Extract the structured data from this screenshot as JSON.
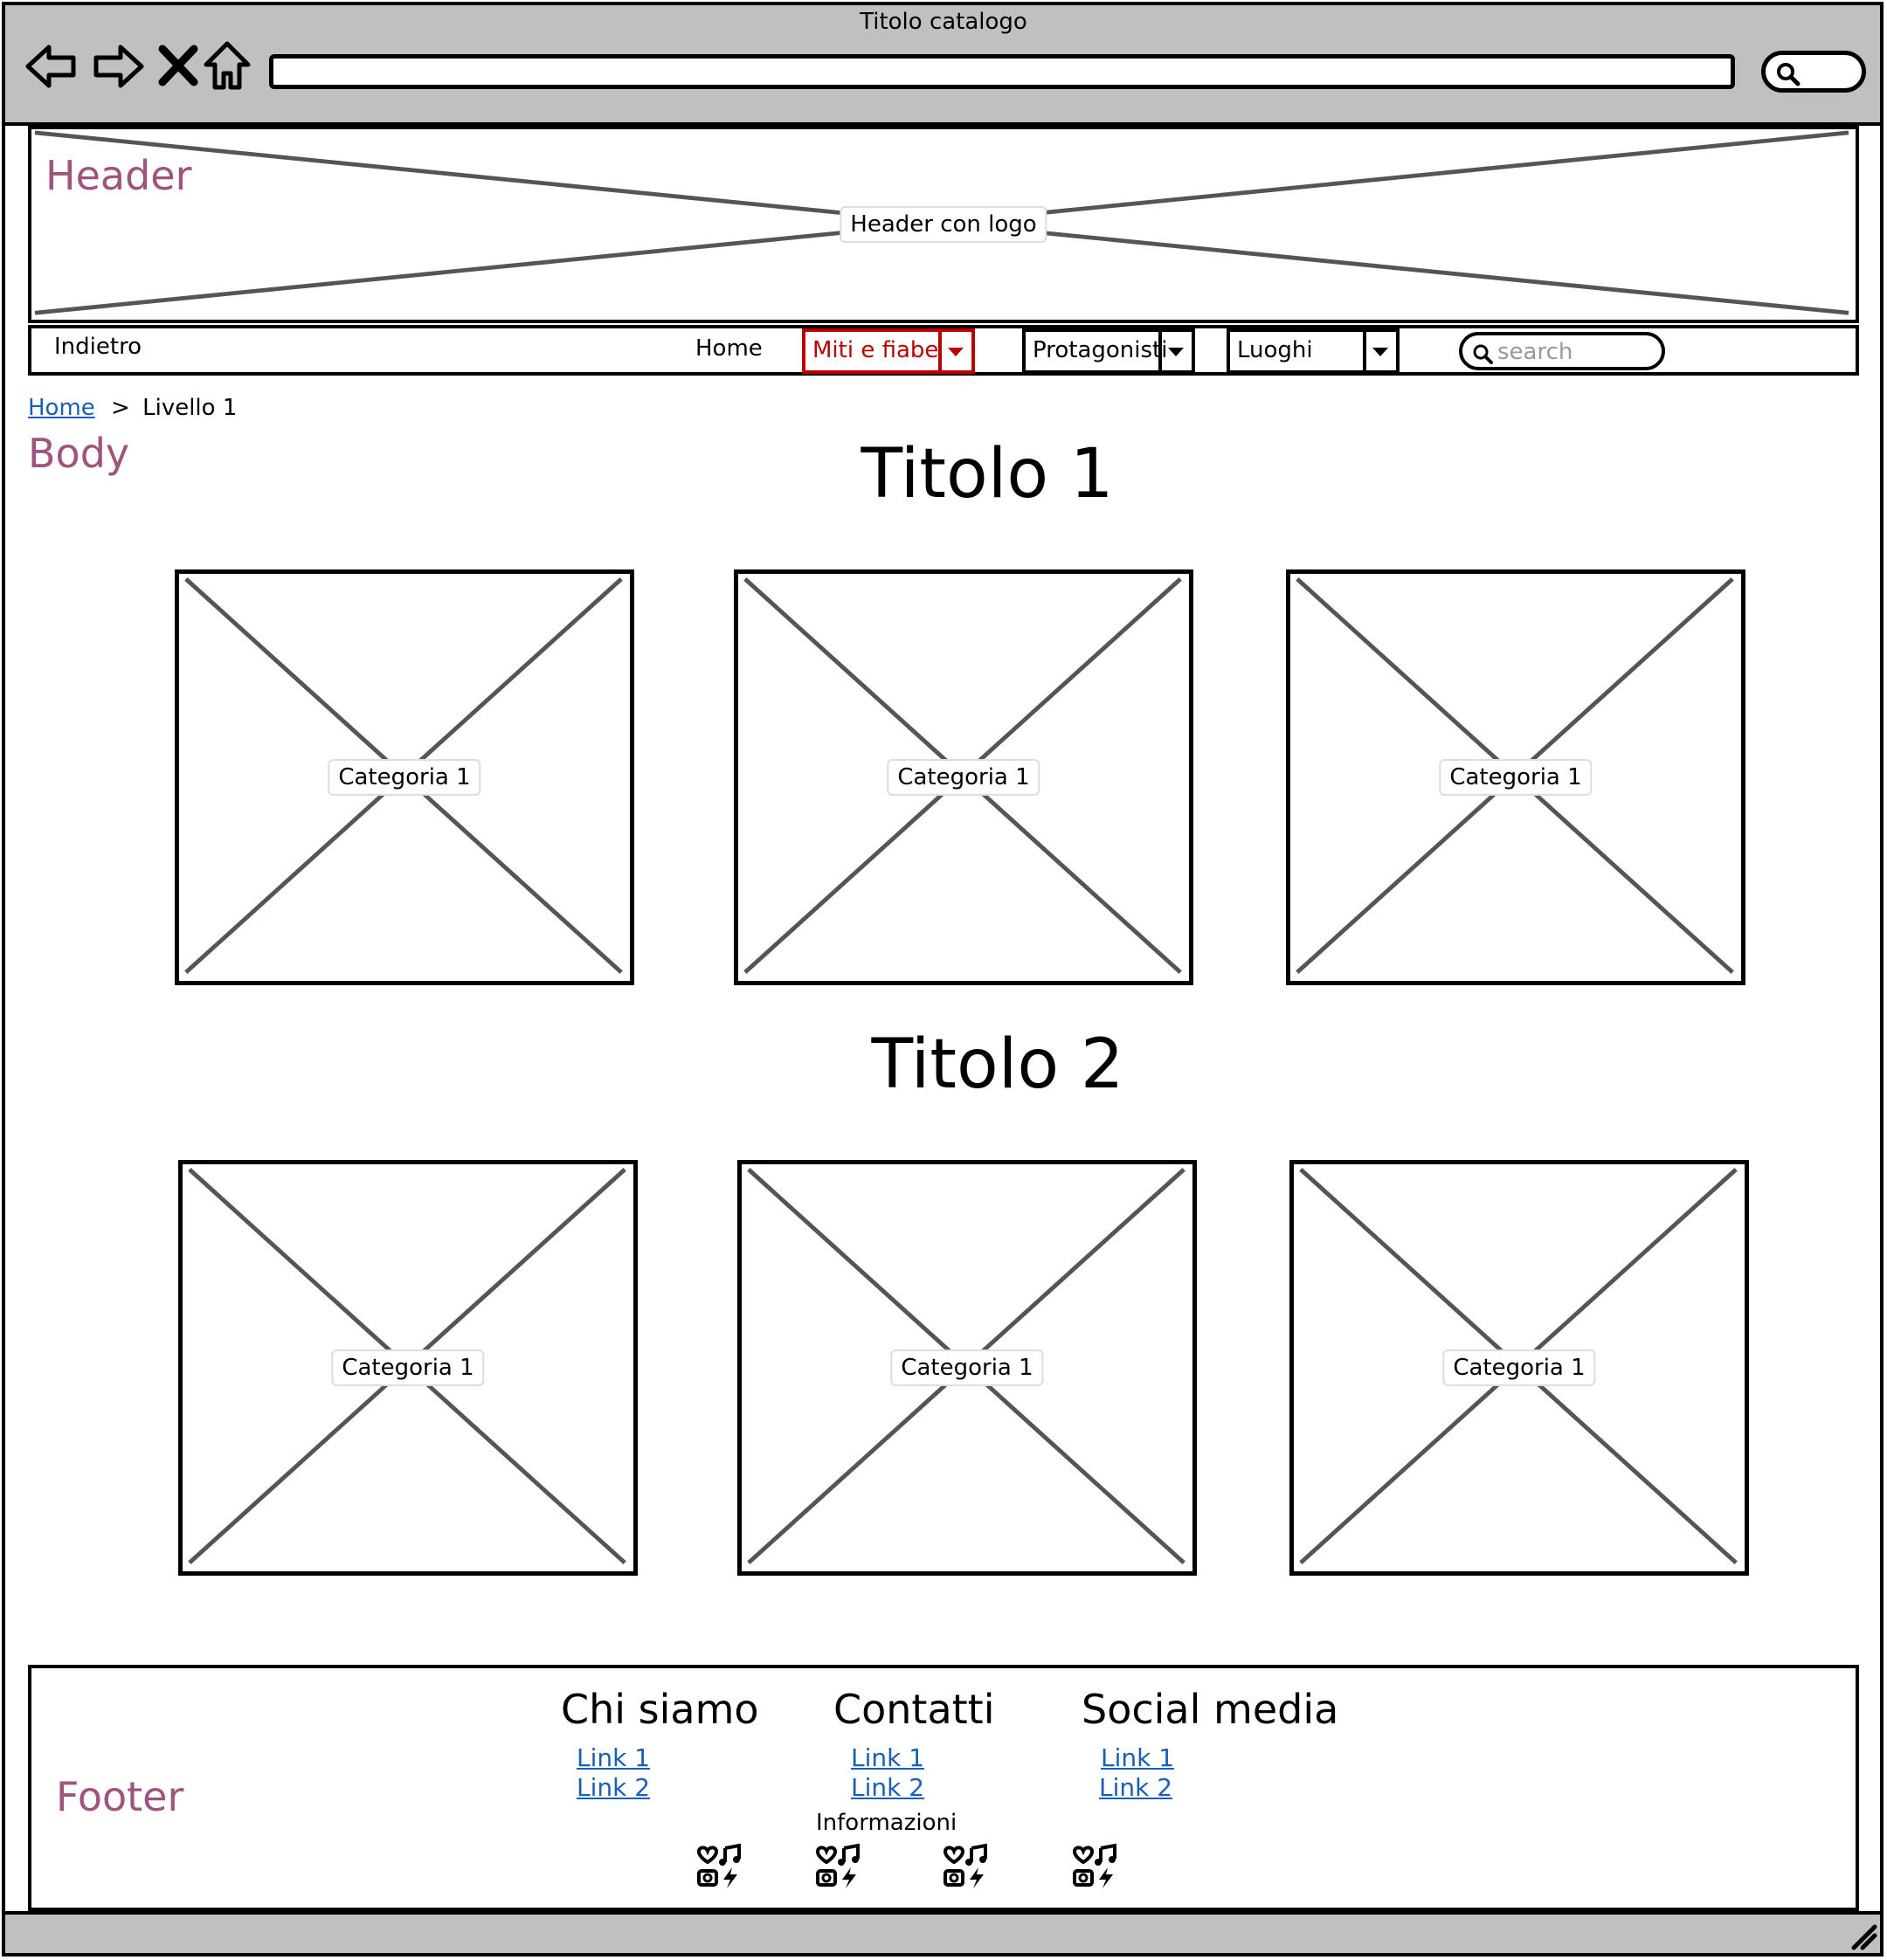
{
  "browser": {
    "title": "Titolo catalogo",
    "nav_icons": [
      "back-arrow-icon",
      "forward-arrow-icon",
      "close-icon",
      "home-icon"
    ],
    "search_icon": "search-icon"
  },
  "header": {
    "region_label": "Header",
    "placeholder_label": "Header con logo"
  },
  "nav": {
    "back_label": "Indietro",
    "home_label": "Home",
    "dropdowns": [
      {
        "label": "Miti e fiabe",
        "active": true
      },
      {
        "label": "Protagonisti",
        "active": false
      },
      {
        "label": "Luoghi",
        "active": false
      }
    ],
    "search_placeholder": "search",
    "active_color": "#b00000"
  },
  "breadcrumb": {
    "home": "Home",
    "separator": ">",
    "current": "Livello 1"
  },
  "body": {
    "region_label": "Body",
    "sections": [
      {
        "title": "Titolo 1",
        "cards": [
          "Categoria 1",
          "Categoria 1",
          "Categoria 1"
        ]
      },
      {
        "title": "Titolo 2",
        "cards": [
          "Categoria 1",
          "Categoria 1",
          "Categoria 1"
        ]
      }
    ]
  },
  "footer": {
    "region_label": "Footer",
    "columns": [
      {
        "heading": "Chi siamo",
        "links": [
          "Link 1",
          "Link 2"
        ]
      },
      {
        "heading": "Contatti",
        "links": [
          "Link 1",
          "Link 2"
        ]
      },
      {
        "heading": "Social media",
        "links": [
          "Link 1",
          "Link 2"
        ]
      }
    ],
    "info_label": "Informazioni",
    "social_icons": [
      "social-media-icon",
      "social-media-icon",
      "social-media-icon",
      "social-media-icon"
    ]
  },
  "colors": {
    "region_label": "#a0537e",
    "link": "#1a5fb4",
    "chrome": "#c0c0c0"
  }
}
